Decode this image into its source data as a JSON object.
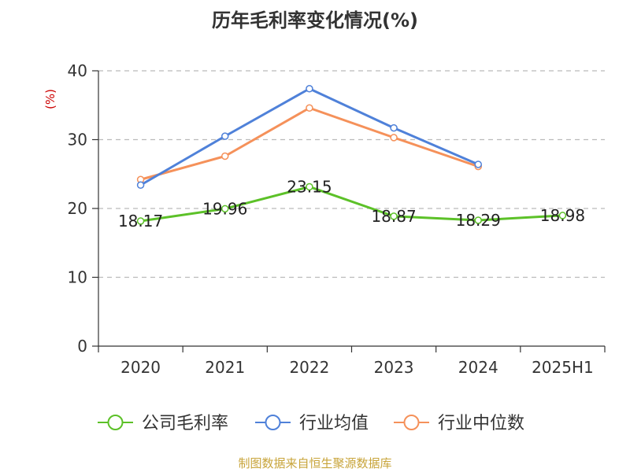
{
  "colors": {
    "company": "#5cc128",
    "industry_avg": "#4f81d9",
    "industry_median": "#f5915a",
    "ylabel": "#cc0000",
    "source": "#c8a43a"
  },
  "chart_data": {
    "type": "line",
    "title": "历年毛利率变化情况(%)",
    "ylabel": "(%)",
    "categories": [
      "2020",
      "2021",
      "2022",
      "2023",
      "2024",
      "2025H1"
    ],
    "ylim": [
      0,
      40
    ],
    "yticks": [
      0,
      10,
      20,
      30,
      40
    ],
    "grid": true,
    "legend": "bottom",
    "series": [
      {
        "name": "公司毛利率",
        "values": [
          18.17,
          19.96,
          23.15,
          18.87,
          18.29,
          18.98
        ],
        "labels": [
          "18.17",
          "19.96",
          "23.15",
          "18.87",
          "18.29",
          "18.98"
        ]
      },
      {
        "name": "行业均值",
        "values": [
          23.4,
          30.5,
          37.4,
          31.7,
          26.4,
          null
        ]
      },
      {
        "name": "行业中位数",
        "values": [
          24.2,
          27.6,
          34.6,
          30.3,
          26.1,
          null
        ]
      }
    ]
  },
  "source": "制图数据来自恒生聚源数据库"
}
